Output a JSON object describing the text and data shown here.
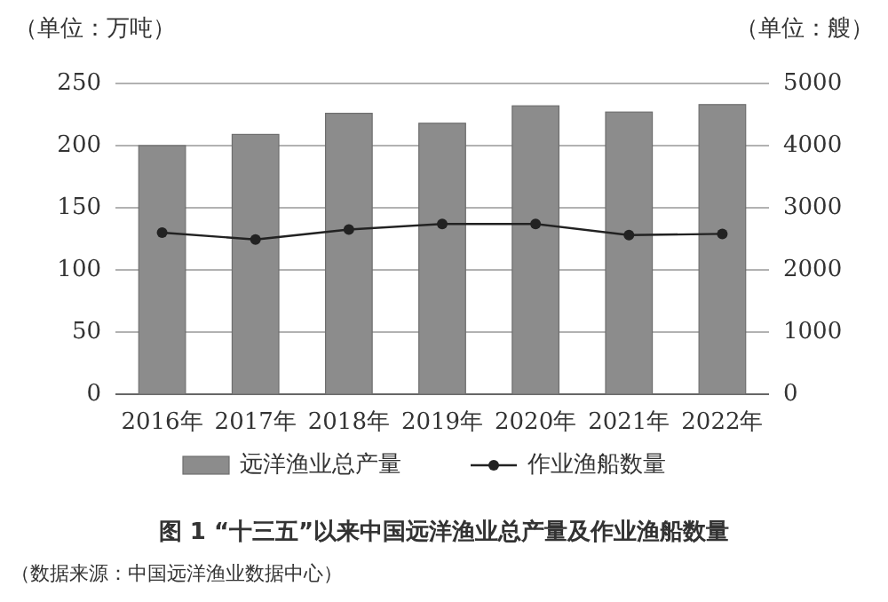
{
  "chart_data": {
    "type": "bar",
    "title": "图 1 “十三五”以来中国远洋渔业总产量及作业渔船数量",
    "ylabel": "（单位：万吨）",
    "y2label": "（单位：艘）",
    "annotations": [
      "（数据来源：中国远洋渔业数据中心）"
    ],
    "categories": [
      "2016年",
      "2017年",
      "2018年",
      "2019年",
      "2020年",
      "2021年",
      "2022年"
    ],
    "series": [
      {
        "name": "远洋渔业总产量",
        "color": "#8c8c8c",
        "values": [
          200,
          209,
          226,
          218,
          232,
          227,
          233
        ]
      },
      {
        "name": "作业渔船数量",
        "type": "line",
        "axis": "y2",
        "color": "#222222",
        "values": [
          2600,
          2490,
          2650,
          2740,
          2740,
          2560,
          2580
        ],
        "marker": "circle"
      }
    ],
    "ylim": [
      0,
      250
    ],
    "yticks": [
      0,
      50,
      100,
      150,
      200,
      250
    ],
    "y2lim": [
      0,
      5000
    ],
    "y2ticks": [
      0,
      1000,
      2000,
      3000,
      4000,
      5000
    ],
    "grid": "y",
    "legend": "bottom"
  }
}
